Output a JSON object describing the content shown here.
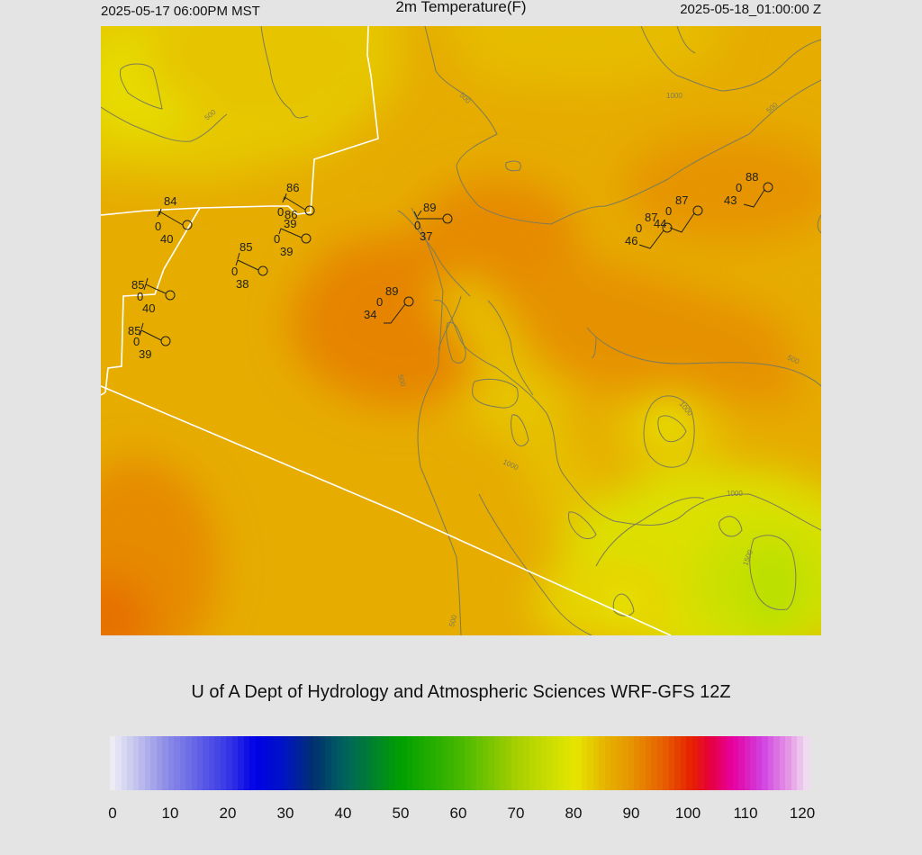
{
  "header": {
    "local_time": "2025-05-17 06:00PM MST",
    "title": "2m Temperature(F)",
    "utc_time": "2025-05-18_01:00:00 Z"
  },
  "credit": "U of A Dept of Hydrology and Atmospheric Sciences WRF-GFS 12Z",
  "colorbar": {
    "ticks": [
      "0",
      "10",
      "20",
      "30",
      "40",
      "50",
      "60",
      "70",
      "80",
      "90",
      "100",
      "110",
      "120"
    ],
    "stops": [
      {
        "v": 0,
        "c": "#f1f1f6"
      },
      {
        "v": 10,
        "c": "#8a8ae6"
      },
      {
        "v": 20,
        "c": "#3a3ae6"
      },
      {
        "v": 25,
        "c": "#0000e6"
      },
      {
        "v": 30,
        "c": "#0014c4"
      },
      {
        "v": 35,
        "c": "#00306e"
      },
      {
        "v": 40,
        "c": "#006060"
      },
      {
        "v": 50,
        "c": "#00a000"
      },
      {
        "v": 60,
        "c": "#44b800"
      },
      {
        "v": 70,
        "c": "#a8d000"
      },
      {
        "v": 80,
        "c": "#e6e600"
      },
      {
        "v": 85,
        "c": "#e6b400"
      },
      {
        "v": 90,
        "c": "#e69000"
      },
      {
        "v": 95,
        "c": "#e66000"
      },
      {
        "v": 100,
        "c": "#e62000"
      },
      {
        "v": 103,
        "c": "#e6003c"
      },
      {
        "v": 107,
        "c": "#e600a0"
      },
      {
        "v": 112,
        "c": "#d040e0"
      },
      {
        "v": 117,
        "c": "#e6a0e6"
      },
      {
        "v": 120,
        "c": "#f1e6f1"
      }
    ]
  },
  "contour_labels": [
    "500",
    "1000",
    "1500"
  ],
  "stations": [
    {
      "temp": "84",
      "dew": "40",
      "wind": "0"
    },
    {
      "temp": "86",
      "dew": "39",
      "wind": "0"
    },
    {
      "temp": "86",
      "dew": "39",
      "wind": "0"
    },
    {
      "temp": "85",
      "dew": "38",
      "wind": "0"
    },
    {
      "temp": "89",
      "dew": "37",
      "wind": "0"
    },
    {
      "temp": "85",
      "dew": "40",
      "wind": "0"
    },
    {
      "temp": "85",
      "dew": "39",
      "wind": "0"
    },
    {
      "temp": "89",
      "dew": "34",
      "wind": "0"
    },
    {
      "temp": "87",
      "dew": "46",
      "wind": "0"
    },
    {
      "temp": "87",
      "dew": "44",
      "wind": "0"
    },
    {
      "temp": "88",
      "dew": "43",
      "wind": "0"
    }
  ],
  "colors": {
    "map_base": "#e6ac00",
    "warm_core": "#e68800",
    "cool_yellow": "#e6d800",
    "green_yellow": "#c4e000",
    "contour": "#7c7c5a",
    "border": "#ffffff",
    "station": "#222222"
  }
}
